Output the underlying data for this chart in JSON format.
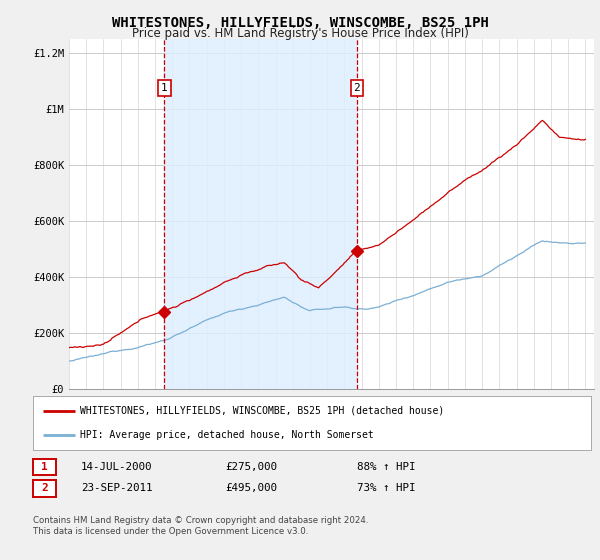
{
  "title": "WHITESTONES, HILLYFIELDS, WINSCOMBE, BS25 1PH",
  "subtitle": "Price paid vs. HM Land Registry's House Price Index (HPI)",
  "legend_line1": "WHITESTONES, HILLYFIELDS, WINSCOMBE, BS25 1PH (detached house)",
  "legend_line2": "HPI: Average price, detached house, North Somerset",
  "footnote": "Contains HM Land Registry data © Crown copyright and database right 2024.\nThis data is licensed under the Open Government Licence v3.0.",
  "sale1_date": "14-JUL-2000",
  "sale1_price": "£275,000",
  "sale1_hpi": "88% ↑ HPI",
  "sale1_year": 2000.54,
  "sale1_value": 275000,
  "sale2_date": "23-SEP-2011",
  "sale2_price": "£495,000",
  "sale2_hpi": "73% ↑ HPI",
  "sale2_year": 2011.72,
  "sale2_value": 495000,
  "ylim": [
    0,
    1250000
  ],
  "yticks": [
    0,
    200000,
    400000,
    600000,
    800000,
    1000000,
    1200000
  ],
  "ytick_labels": [
    "£0",
    "£200K",
    "£400K",
    "£600K",
    "£800K",
    "£1M",
    "£1.2M"
  ],
  "xmin": 1995,
  "xmax": 2025.5,
  "red_color": "#cc0000",
  "blue_color": "#7bafd4",
  "shade_color": "#ddeeff",
  "background_color": "#f0f0f0",
  "plot_bg_color": "#ffffff",
  "grid_color": "#cccccc",
  "vline_color": "#cc0000"
}
